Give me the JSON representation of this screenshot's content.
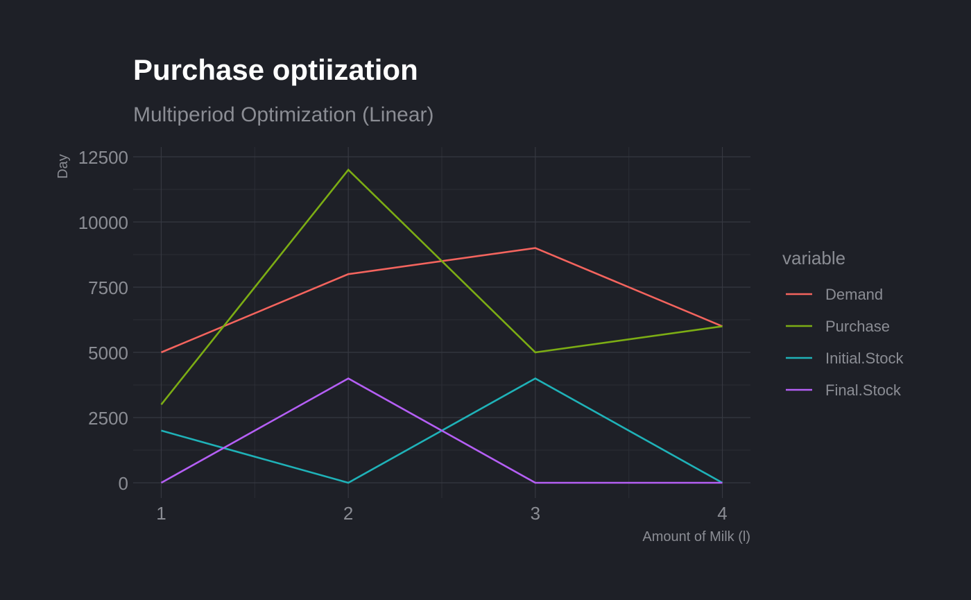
{
  "title": "Purchase optiization",
  "subtitle": "Multiperiod Optimization (Linear)",
  "chart_data": {
    "type": "line",
    "title": "Purchase optiization",
    "subtitle": "Multiperiod Optimization (Linear)",
    "xlabel": "Amount of Milk (l)",
    "ylabel": "Day",
    "x": [
      1,
      2,
      3,
      4
    ],
    "x_tick_labels": [
      "1",
      "2",
      "3",
      "4"
    ],
    "y_tick_labels": [
      "0",
      "2500",
      "5000",
      "7500",
      "10000",
      "12500"
    ],
    "y_ticks": [
      0,
      2500,
      5000,
      7500,
      10000,
      12500
    ],
    "xlim": [
      0.85,
      4.15
    ],
    "ylim": [
      -600,
      12500
    ],
    "grid": true,
    "legend_title": "variable",
    "legend_position": "right",
    "series": [
      {
        "name": "Demand",
        "color": "#f4645e",
        "values": [
          5000,
          8000,
          9000,
          6000
        ]
      },
      {
        "name": "Purchase",
        "color": "#7cad14",
        "values": [
          3000,
          12000,
          5000,
          6000
        ]
      },
      {
        "name": "Initial.Stock",
        "color": "#1fb2b8",
        "values": [
          2000,
          0,
          4000,
          0
        ]
      },
      {
        "name": "Final.Stock",
        "color": "#b55ff5",
        "values": [
          0,
          4000,
          0,
          0
        ]
      }
    ]
  }
}
